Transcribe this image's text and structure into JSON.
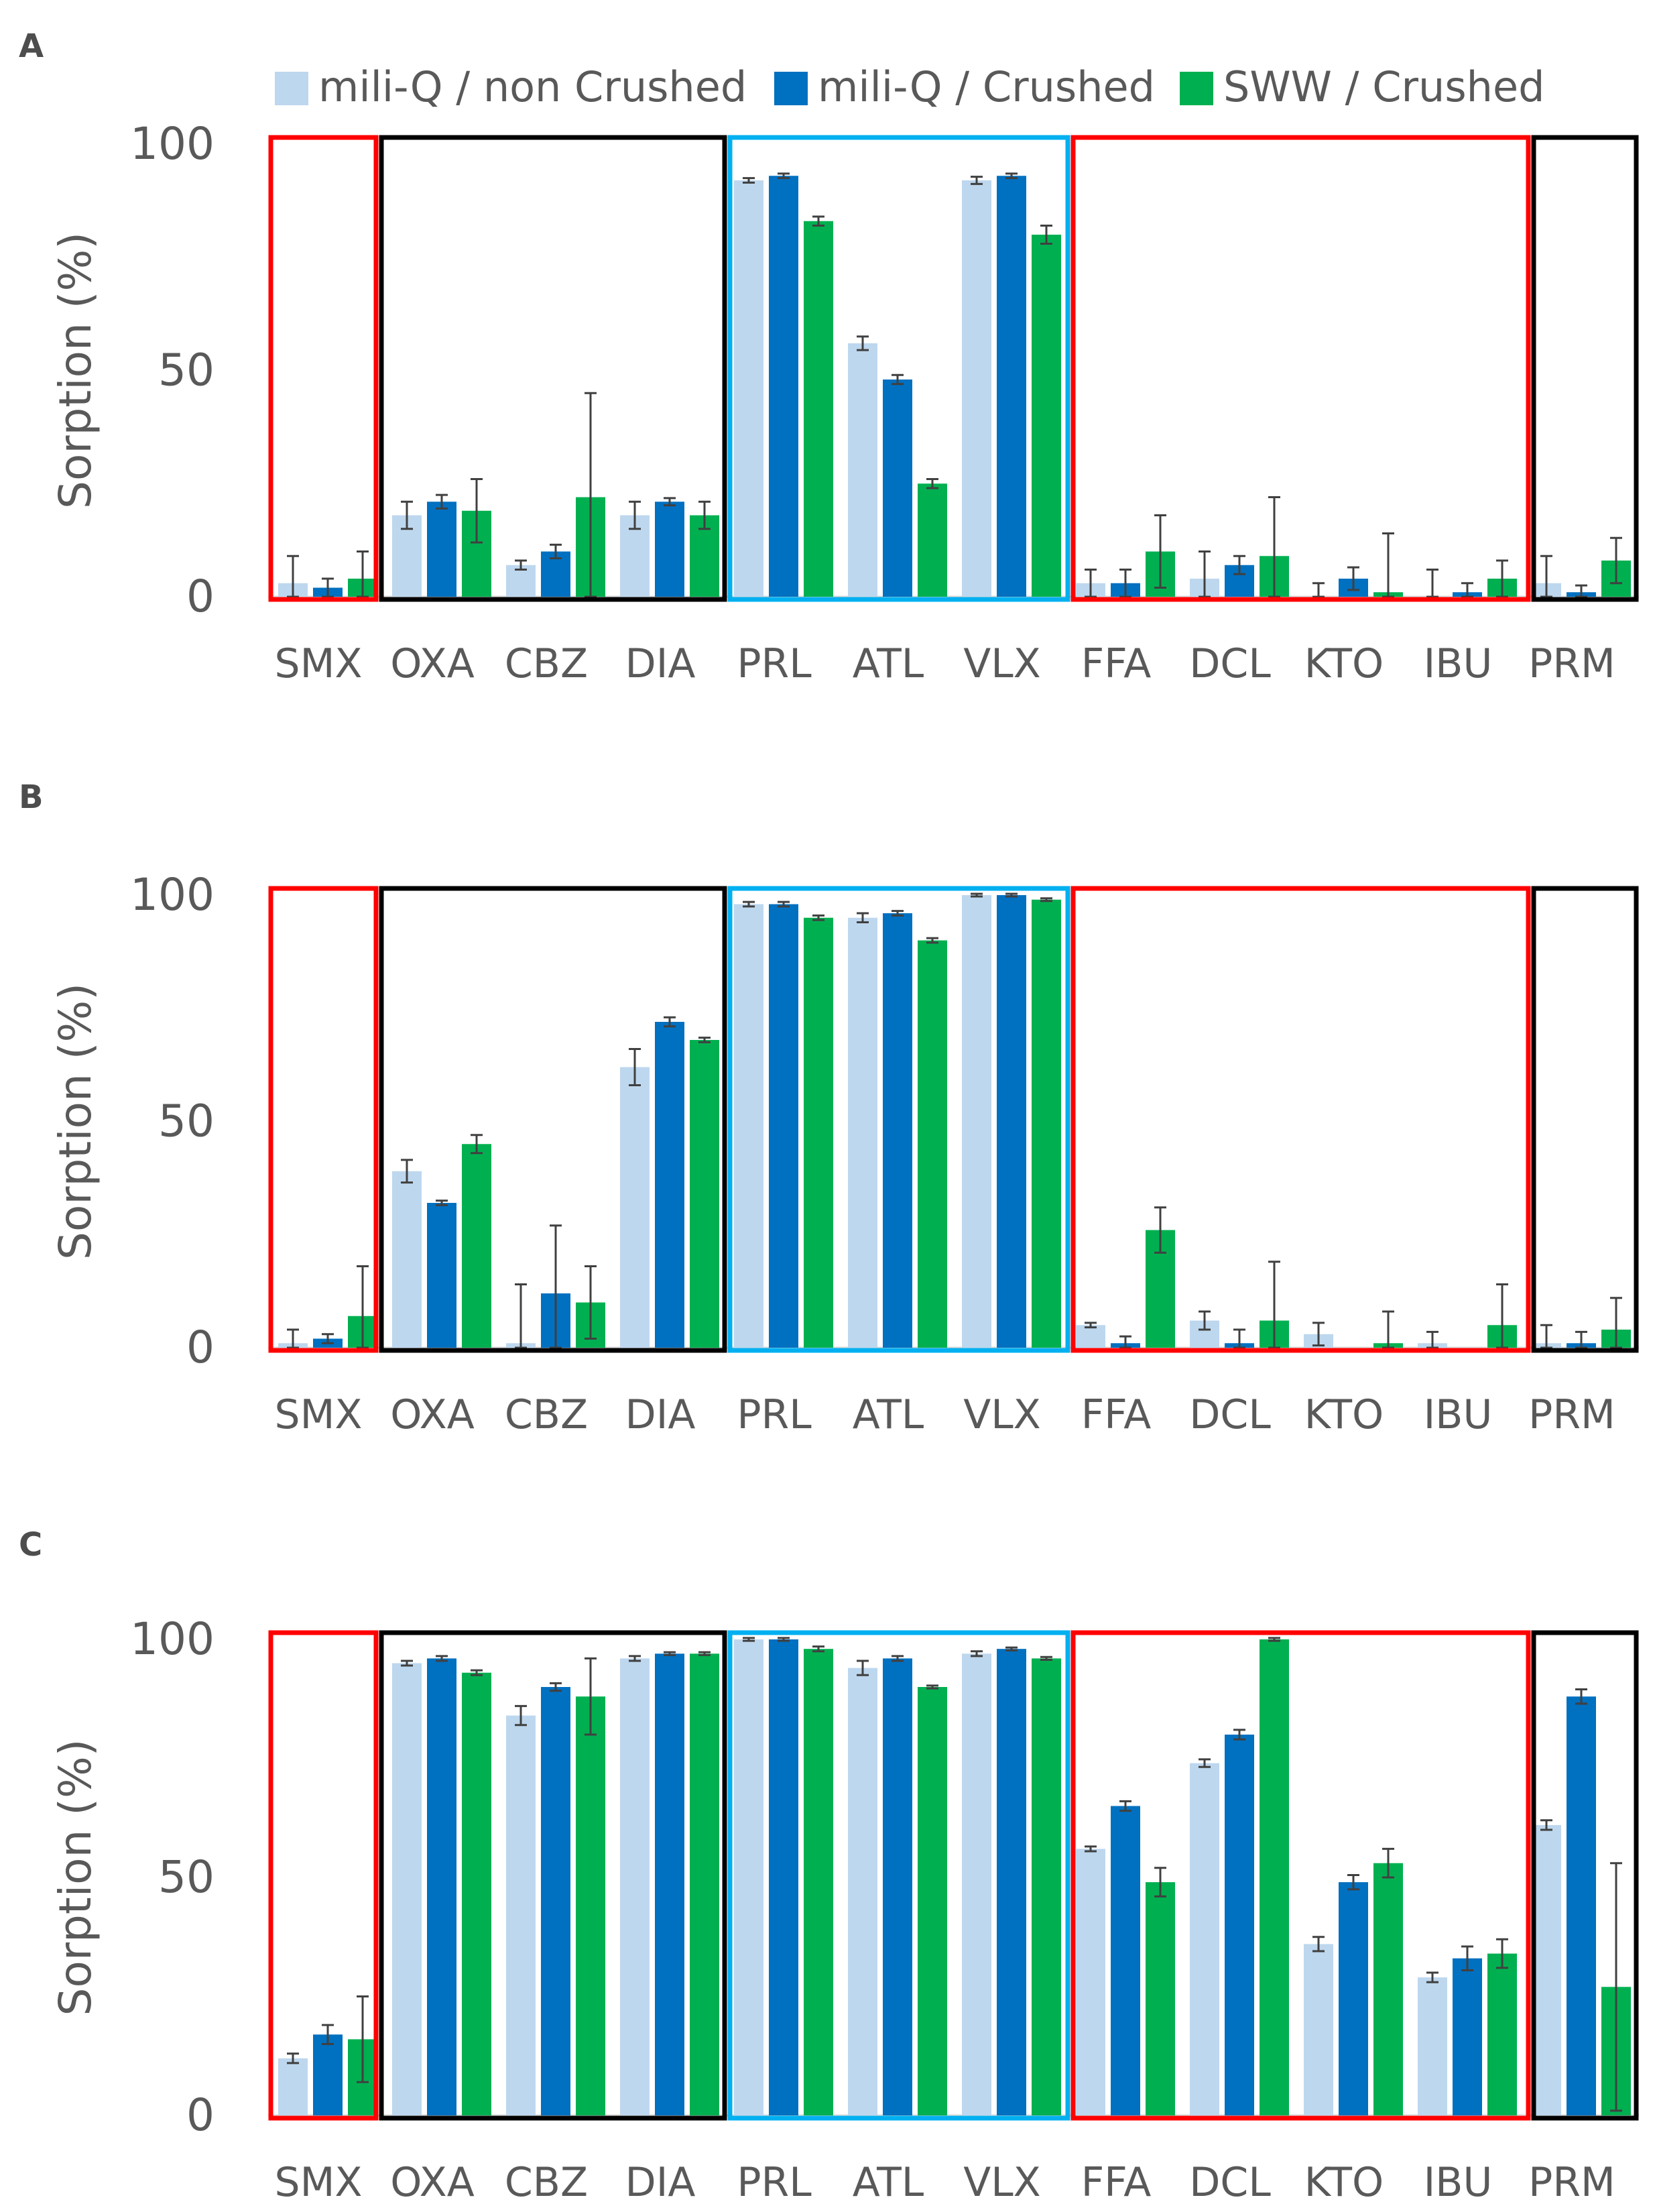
{
  "colors": {
    "series": [
      "#bdd7ee",
      "#0070c0",
      "#00b050"
    ],
    "box_red": "#ff0000",
    "box_black": "#000000",
    "box_cyan": "#00b0f0",
    "text": "#595959",
    "error_bar": "#404040"
  },
  "legend": [
    "mili-Q / non Crushed",
    "mili-Q / Crushed",
    "SWW / Crushed"
  ],
  "chart_data": [
    {
      "type": "bar",
      "panel": "A",
      "ylabel": "Sorption (%)",
      "xlabel": "",
      "ylim": [
        0,
        100
      ],
      "yticks": [
        0,
        50,
        100
      ],
      "categories": [
        "SMX",
        "OXA",
        "CBZ",
        "DIA",
        "PRL",
        "ATL",
        "VLX",
        "FFA",
        "DCL",
        "KTO",
        "IBU",
        "PRM"
      ],
      "series": [
        {
          "name": "mili-Q / non Crushed",
          "values": [
            3,
            18,
            7,
            18,
            92,
            56,
            92,
            3,
            4,
            0,
            0,
            3
          ],
          "errors": [
            6,
            3,
            1,
            3,
            0.5,
            1.5,
            0.8,
            3,
            6,
            3,
            6,
            6
          ]
        },
        {
          "name": "mili-Q / Crushed",
          "values": [
            2,
            21,
            10,
            21,
            93,
            48,
            93,
            3,
            7,
            4,
            1,
            1
          ],
          "errors": [
            2,
            1.5,
            1.5,
            0.8,
            0.5,
            1,
            0.5,
            3,
            2,
            2.5,
            2,
            1.5
          ]
        },
        {
          "name": "SWW / Crushed",
          "values": [
            4,
            19,
            22,
            18,
            83,
            25,
            80,
            10,
            9,
            1,
            4,
            8
          ],
          "errors": [
            6,
            7,
            23,
            3,
            1,
            1,
            2,
            8,
            13,
            13,
            4,
            5
          ]
        }
      ],
      "groups": [
        {
          "start": 0,
          "end": 0,
          "color": "red"
        },
        {
          "start": 1,
          "end": 3,
          "color": "black"
        },
        {
          "start": 4,
          "end": 6,
          "color": "cyan"
        },
        {
          "start": 7,
          "end": 10,
          "color": "red"
        },
        {
          "start": 11,
          "end": 11,
          "color": "black"
        }
      ]
    },
    {
      "type": "bar",
      "panel": "B",
      "ylabel": "Sorption (%)",
      "xlabel": "",
      "ylim": [
        0,
        100
      ],
      "yticks": [
        0,
        50,
        100
      ],
      "categories": [
        "SMX",
        "OXA",
        "CBZ",
        "DIA",
        "PRL",
        "ATL",
        "VLX",
        "FFA",
        "DCL",
        "KTO",
        "IBU",
        "PRM"
      ],
      "series": [
        {
          "name": "mili-Q / non Crushed",
          "values": [
            1,
            39,
            1,
            62,
            98,
            95,
            100,
            5,
            6,
            3,
            1,
            1
          ],
          "errors": [
            3,
            2.5,
            13,
            4,
            0.5,
            1,
            0.3,
            0.5,
            2,
            2.5,
            2.5,
            4
          ]
        },
        {
          "name": "mili-Q / Crushed",
          "values": [
            2,
            32,
            12,
            72,
            98,
            96,
            100,
            1,
            1,
            0,
            0,
            1
          ],
          "errors": [
            1,
            0.5,
            15,
            1,
            0.5,
            0.5,
            0.3,
            1.5,
            3,
            0,
            0,
            2.5
          ]
        },
        {
          "name": "SWW / Crushed",
          "values": [
            7,
            45,
            10,
            68,
            95,
            90,
            99,
            26,
            6,
            1,
            5,
            4
          ],
          "errors": [
            11,
            2,
            8,
            0.5,
            0.5,
            0.5,
            0.3,
            5,
            13,
            7,
            9,
            7
          ]
        }
      ],
      "groups": [
        {
          "start": 0,
          "end": 0,
          "color": "red"
        },
        {
          "start": 1,
          "end": 3,
          "color": "black"
        },
        {
          "start": 4,
          "end": 6,
          "color": "cyan"
        },
        {
          "start": 7,
          "end": 10,
          "color": "red"
        },
        {
          "start": 11,
          "end": 11,
          "color": "black"
        }
      ]
    },
    {
      "type": "bar",
      "panel": "C",
      "ylabel": "Sorption (%)",
      "xlabel": "",
      "ylim": [
        0,
        100
      ],
      "yticks": [
        0,
        50,
        100
      ],
      "categories": [
        "SMX",
        "OXA",
        "CBZ",
        "DIA",
        "PRL",
        "ATL",
        "VLX",
        "FFA",
        "DCL",
        "KTO",
        "IBU",
        "PRM"
      ],
      "series": [
        {
          "name": "mili-Q / non Crushed",
          "values": [
            12,
            95,
            84,
            96,
            100,
            94,
            97,
            56,
            74,
            36,
            29,
            61
          ],
          "errors": [
            1,
            0.5,
            2,
            0.5,
            0.3,
            1.5,
            0.5,
            0.5,
            0.8,
            1.5,
            1,
            1
          ]
        },
        {
          "name": "mili-Q / Crushed",
          "values": [
            17,
            96,
            90,
            97,
            100,
            96,
            98,
            65,
            80,
            49,
            33,
            88
          ],
          "errors": [
            2,
            0.5,
            0.8,
            0.3,
            0.3,
            0.5,
            0.3,
            1,
            1,
            1.5,
            2.5,
            1.5
          ]
        },
        {
          "name": "SWW / Crushed",
          "values": [
            16,
            93,
            88,
            97,
            98,
            90,
            96,
            49,
            100,
            53,
            34,
            27
          ],
          "errors": [
            9,
            0.5,
            8,
            0.3,
            0.5,
            0.3,
            0.3,
            3,
            0.3,
            3,
            3,
            26
          ]
        }
      ],
      "groups": [
        {
          "start": 0,
          "end": 0,
          "color": "red"
        },
        {
          "start": 1,
          "end": 3,
          "color": "black"
        },
        {
          "start": 4,
          "end": 6,
          "color": "cyan"
        },
        {
          "start": 7,
          "end": 10,
          "color": "red"
        },
        {
          "start": 11,
          "end": 11,
          "color": "black"
        }
      ]
    }
  ]
}
